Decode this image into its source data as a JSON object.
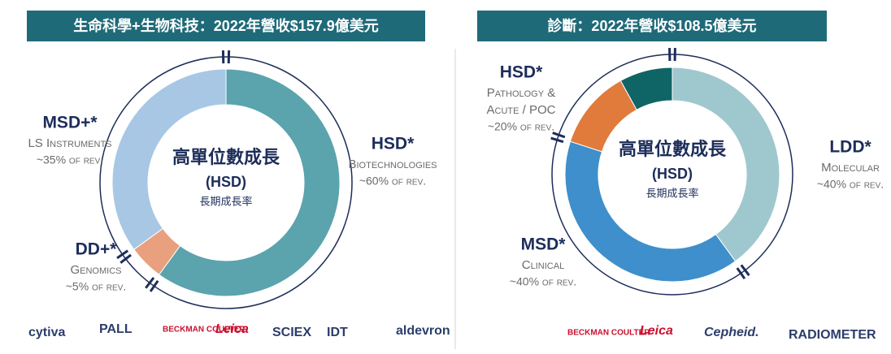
{
  "chart_data": [
    {
      "type": "donut",
      "title": "生命科學+生物科技：2022年營收$157.9億美元",
      "center": [
        "高單位數成長",
        "(HSD)",
        "長期成長率"
      ],
      "segments": [
        {
          "name": "HSD*",
          "sub": [
            "Biotechnologies"
          ],
          "value": 60,
          "value_label": "~60% of rev.",
          "color": "#5ba3ad"
        },
        {
          "name": "DD+*",
          "sub": [
            "Genomics"
          ],
          "value": 5,
          "value_label": "~5% of rev.",
          "color": "#e9a07e"
        },
        {
          "name": "MSD+*",
          "sub": [
            "LS Instruments"
          ],
          "value": 35,
          "value_label": "~35% of rev.",
          "color": "#a7c7e5"
        }
      ],
      "logos": [
        "cytiva",
        "PALL",
        "BECKMAN COULTER",
        "Leica",
        "SCIEX",
        "IDT",
        "aldevron"
      ]
    },
    {
      "type": "donut",
      "title": "診斷：2022年營收$108.5億美元",
      "center": [
        "高單位數成長",
        "(HSD)",
        "長期成長率"
      ],
      "segments": [
        {
          "name": "LDD*",
          "sub": [
            "Molecular"
          ],
          "value": 40,
          "value_label": "~40% of rev.",
          "color": "#9fc8ce"
        },
        {
          "name": "MSD*",
          "sub": [
            "Clinical"
          ],
          "value": 40,
          "value_label": "~40% of rev.",
          "color": "#3e8fcb"
        },
        {
          "name": "HSD*",
          "sub": [
            "Pathology &",
            "Acute / POC"
          ],
          "value": 20,
          "value_label": "~20% of rev.",
          "color": "#e07b3c",
          "parts": [
            {
              "value": 12,
              "color": "#e07b3c"
            },
            {
              "value": 8,
              "color": "#0f6466"
            }
          ]
        }
      ],
      "logos": [
        "BECKMAN COULTER",
        "Leica",
        "Cepheid.",
        "RADIOMETER"
      ]
    }
  ]
}
